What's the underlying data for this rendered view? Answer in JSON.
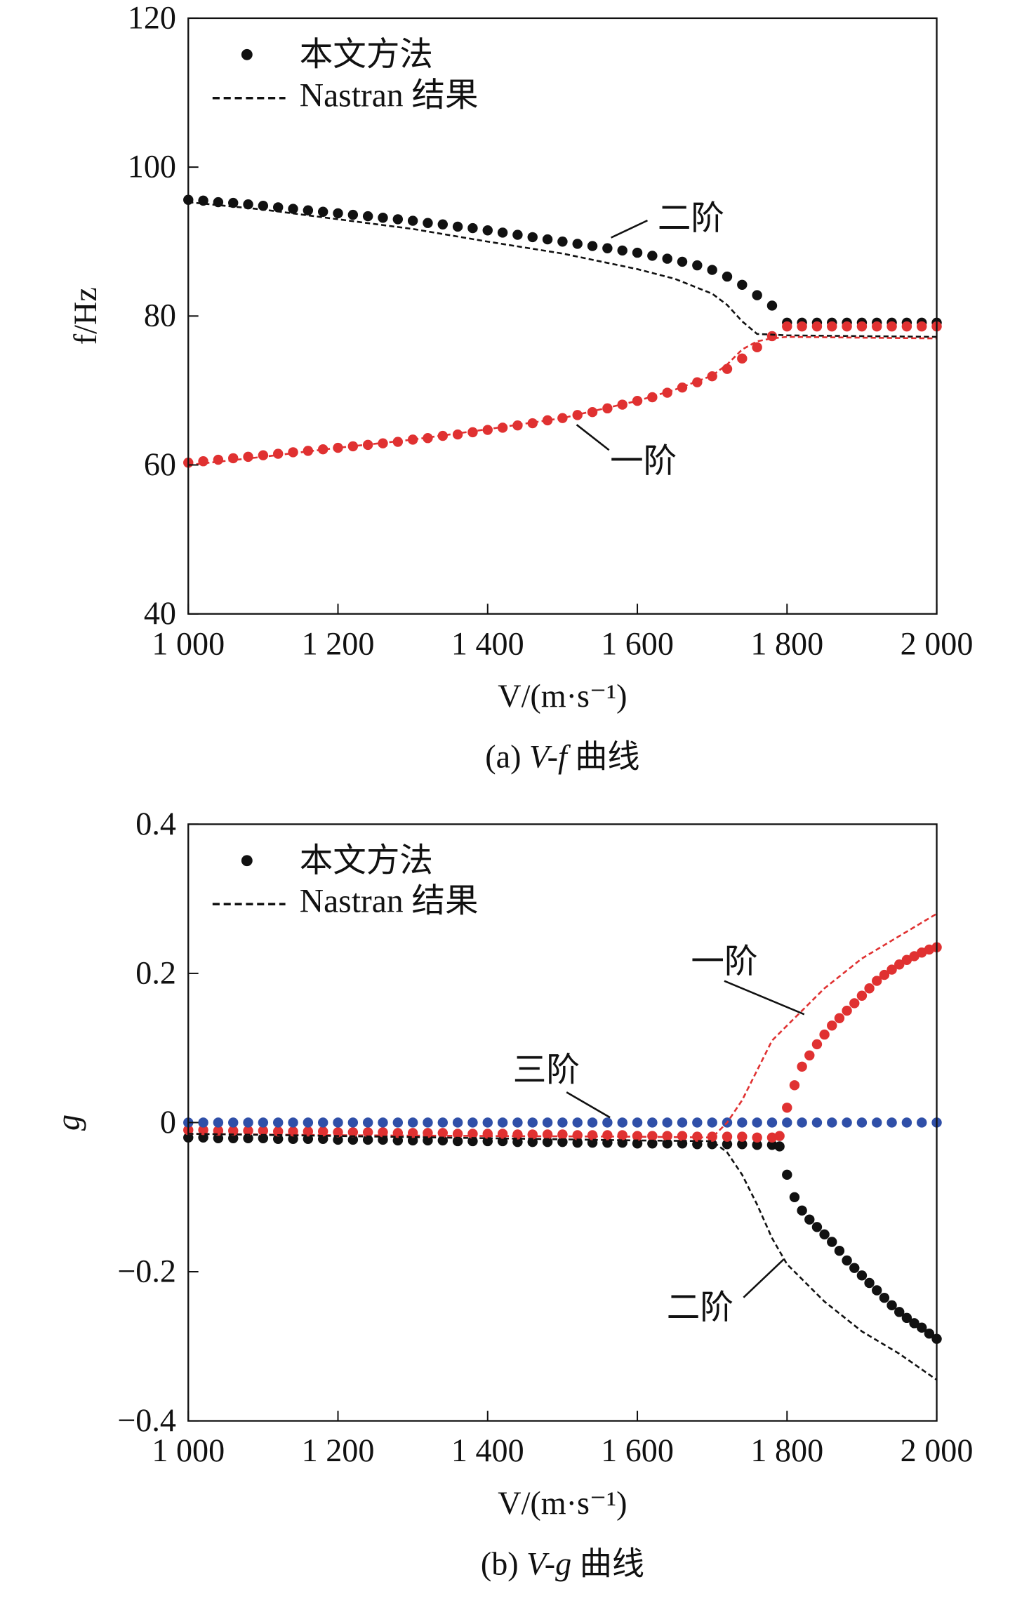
{
  "chart_data": [
    {
      "type": "scatter",
      "caption": "(a) V-f 曲线",
      "caption_parts": {
        "prefix": "(a) ",
        "italic": "V-f",
        "suffix": " 曲线"
      },
      "xlabel": "V/(m·s⁻¹)",
      "ylabel": "f/Hz",
      "xlim": [
        1000,
        2000
      ],
      "ylim": [
        40,
        120
      ],
      "xticks": [
        1000,
        1200,
        1400,
        1600,
        1800,
        2000
      ],
      "xtick_labels": [
        "1 000",
        "1 200",
        "1 400",
        "1 600",
        "1 800",
        "2 000"
      ],
      "yticks": [
        40,
        60,
        80,
        100,
        120
      ],
      "ytick_labels": [
        "40",
        "60",
        "80",
        "100",
        "120"
      ],
      "grid": false,
      "legend": {
        "position": "top-left",
        "entries": [
          {
            "label": "本文方法",
            "marker": "dot"
          },
          {
            "label": "Nastran 结果",
            "marker": "dashed-line"
          }
        ]
      },
      "annotations": [
        {
          "text": "二阶"
        },
        {
          "text": "一阶"
        }
      ],
      "series": [
        {
          "kind": "dots",
          "color": "#111111",
          "x": [
            1000,
            1020,
            1040,
            1060,
            1080,
            1100,
            1120,
            1140,
            1160,
            1180,
            1200,
            1220,
            1240,
            1260,
            1280,
            1300,
            1320,
            1340,
            1360,
            1380,
            1400,
            1420,
            1440,
            1460,
            1480,
            1500,
            1520,
            1540,
            1560,
            1580,
            1600,
            1620,
            1640,
            1660,
            1680,
            1700,
            1720,
            1740,
            1760,
            1780,
            1800,
            1820,
            1840,
            1860,
            1880,
            1900,
            1920,
            1940,
            1960,
            1980,
            2000
          ],
          "y": [
            95.6,
            95.5,
            95.3,
            95.2,
            95.0,
            94.8,
            94.6,
            94.4,
            94.2,
            94.0,
            93.8,
            93.6,
            93.4,
            93.2,
            93.0,
            92.8,
            92.5,
            92.3,
            92.0,
            91.8,
            91.5,
            91.2,
            90.9,
            90.6,
            90.3,
            90.0,
            89.7,
            89.4,
            89.1,
            88.8,
            88.5,
            88.1,
            87.7,
            87.3,
            86.8,
            86.2,
            85.3,
            84.2,
            82.8,
            81.4,
            79.1,
            79.1,
            79.1,
            79.1,
            79.1,
            79.1,
            79.1,
            79.1,
            79.1,
            79.1,
            79.1
          ]
        },
        {
          "kind": "dots",
          "color": "#e03131",
          "x": [
            1000,
            1020,
            1040,
            1060,
            1080,
            1100,
            1120,
            1140,
            1160,
            1180,
            1200,
            1220,
            1240,
            1260,
            1280,
            1300,
            1320,
            1340,
            1360,
            1380,
            1400,
            1420,
            1440,
            1460,
            1480,
            1500,
            1520,
            1540,
            1560,
            1580,
            1600,
            1620,
            1640,
            1660,
            1680,
            1700,
            1720,
            1740,
            1760,
            1780,
            1800,
            1820,
            1840,
            1860,
            1880,
            1900,
            1920,
            1940,
            1960,
            1980,
            2000
          ],
          "y": [
            60.3,
            60.5,
            60.7,
            60.9,
            61.1,
            61.3,
            61.5,
            61.7,
            61.9,
            62.1,
            62.3,
            62.5,
            62.7,
            62.9,
            63.1,
            63.4,
            63.6,
            63.9,
            64.1,
            64.4,
            64.7,
            65.0,
            65.3,
            65.6,
            66.0,
            66.3,
            66.7,
            67.1,
            67.6,
            68.1,
            68.6,
            69.1,
            69.7,
            70.4,
            71.1,
            71.9,
            72.9,
            74.3,
            75.8,
            77.3,
            78.6,
            78.6,
            78.6,
            78.6,
            78.6,
            78.6,
            78.6,
            78.6,
            78.6,
            78.6,
            78.6
          ]
        },
        {
          "kind": "dashed",
          "color": "#111111",
          "x": [
            1000,
            1100,
            1200,
            1300,
            1400,
            1500,
            1600,
            1650,
            1700,
            1720,
            1740,
            1760,
            1800,
            1900,
            2000
          ],
          "y": [
            95.3,
            94.3,
            93.0,
            91.7,
            90.0,
            88.4,
            86.3,
            85.0,
            83.0,
            81.5,
            79.3,
            77.6,
            77.4,
            77.3,
            77.2
          ]
        },
        {
          "kind": "dashed",
          "color": "#e03131",
          "x": [
            1000,
            1100,
            1200,
            1300,
            1400,
            1500,
            1600,
            1650,
            1700,
            1720,
            1740,
            1760,
            1780,
            1800,
            1900,
            2000
          ],
          "y": [
            60.0,
            61.1,
            62.3,
            63.4,
            64.8,
            66.3,
            68.6,
            70.1,
            72.0,
            73.5,
            75.5,
            76.6,
            77.0,
            77.2,
            77.1,
            77.0
          ]
        }
      ]
    },
    {
      "type": "scatter",
      "caption": "(b) V-g 曲线",
      "caption_parts": {
        "prefix": "(b) ",
        "italic": "V-g",
        "suffix": " 曲线"
      },
      "xlabel": "V/(m·s⁻¹)",
      "ylabel": "g",
      "xlim": [
        1000,
        2000
      ],
      "ylim": [
        -0.4,
        0.4
      ],
      "xticks": [
        1000,
        1200,
        1400,
        1600,
        1800,
        2000
      ],
      "xtick_labels": [
        "1 000",
        "1 200",
        "1 400",
        "1 600",
        "1 800",
        "2 000"
      ],
      "yticks": [
        -0.4,
        -0.2,
        0,
        0.2,
        0.4
      ],
      "ytick_labels": [
        "−0.4",
        "−0.2",
        "0",
        "0.2",
        "0.4"
      ],
      "grid": false,
      "legend": {
        "position": "top-left",
        "entries": [
          {
            "label": "本文方法",
            "marker": "dot"
          },
          {
            "label": "Nastran 结果",
            "marker": "dashed-line"
          }
        ]
      },
      "annotations": [
        {
          "text": "一阶"
        },
        {
          "text": "三阶"
        },
        {
          "text": "二阶"
        }
      ],
      "series": [
        {
          "kind": "dots",
          "color": "#111111",
          "x": [
            1000,
            1020,
            1040,
            1060,
            1080,
            1100,
            1120,
            1140,
            1160,
            1180,
            1200,
            1220,
            1240,
            1260,
            1280,
            1300,
            1320,
            1340,
            1360,
            1380,
            1400,
            1420,
            1440,
            1460,
            1480,
            1500,
            1520,
            1540,
            1560,
            1580,
            1600,
            1620,
            1640,
            1660,
            1680,
            1700,
            1720,
            1740,
            1760,
            1780,
            1790,
            1800,
            1810,
            1820,
            1830,
            1840,
            1850,
            1860,
            1870,
            1880,
            1890,
            1900,
            1910,
            1920,
            1930,
            1940,
            1950,
            1960,
            1970,
            1980,
            1990,
            2000
          ],
          "y": [
            -0.02,
            -0.02,
            -0.021,
            -0.021,
            -0.021,
            -0.021,
            -0.022,
            -0.022,
            -0.022,
            -0.022,
            -0.023,
            -0.023,
            -0.023,
            -0.023,
            -0.024,
            -0.024,
            -0.024,
            -0.024,
            -0.025,
            -0.025,
            -0.025,
            -0.025,
            -0.026,
            -0.026,
            -0.026,
            -0.026,
            -0.027,
            -0.027,
            -0.027,
            -0.027,
            -0.028,
            -0.028,
            -0.028,
            -0.028,
            -0.029,
            -0.029,
            -0.029,
            -0.029,
            -0.03,
            -0.03,
            -0.032,
            -0.07,
            -0.1,
            -0.118,
            -0.13,
            -0.14,
            -0.15,
            -0.16,
            -0.172,
            -0.185,
            -0.195,
            -0.205,
            -0.215,
            -0.225,
            -0.235,
            -0.245,
            -0.254,
            -0.262,
            -0.269,
            -0.275,
            -0.283,
            -0.29
          ]
        },
        {
          "kind": "dots",
          "color": "#e03131",
          "x": [
            1000,
            1020,
            1040,
            1060,
            1080,
            1100,
            1120,
            1140,
            1160,
            1180,
            1200,
            1220,
            1240,
            1260,
            1280,
            1300,
            1320,
            1340,
            1360,
            1380,
            1400,
            1420,
            1440,
            1460,
            1480,
            1500,
            1520,
            1540,
            1560,
            1580,
            1600,
            1620,
            1640,
            1660,
            1680,
            1700,
            1720,
            1740,
            1760,
            1780,
            1790,
            1800,
            1810,
            1820,
            1830,
            1840,
            1850,
            1860,
            1870,
            1880,
            1890,
            1900,
            1910,
            1920,
            1930,
            1940,
            1950,
            1960,
            1970,
            1980,
            1990,
            2000
          ],
          "y": [
            -0.01,
            -0.01,
            -0.011,
            -0.011,
            -0.011,
            -0.011,
            -0.012,
            -0.012,
            -0.012,
            -0.012,
            -0.013,
            -0.013,
            -0.013,
            -0.013,
            -0.014,
            -0.014,
            -0.014,
            -0.014,
            -0.015,
            -0.015,
            -0.015,
            -0.015,
            -0.016,
            -0.016,
            -0.016,
            -0.016,
            -0.017,
            -0.017,
            -0.017,
            -0.017,
            -0.018,
            -0.018,
            -0.018,
            -0.018,
            -0.019,
            -0.019,
            -0.019,
            -0.019,
            -0.02,
            -0.02,
            -0.018,
            0.02,
            0.05,
            0.075,
            0.09,
            0.105,
            0.118,
            0.13,
            0.14,
            0.15,
            0.16,
            0.17,
            0.18,
            0.19,
            0.198,
            0.205,
            0.212,
            0.218,
            0.223,
            0.228,
            0.232,
            0.235
          ]
        },
        {
          "kind": "dots",
          "color": "#2f4fa8",
          "x": [
            1000,
            1020,
            1040,
            1060,
            1080,
            1100,
            1120,
            1140,
            1160,
            1180,
            1200,
            1220,
            1240,
            1260,
            1280,
            1300,
            1320,
            1340,
            1360,
            1380,
            1400,
            1420,
            1440,
            1460,
            1480,
            1500,
            1520,
            1540,
            1560,
            1580,
            1600,
            1620,
            1640,
            1660,
            1680,
            1700,
            1720,
            1740,
            1760,
            1780,
            1800,
            1820,
            1840,
            1860,
            1880,
            1900,
            1920,
            1940,
            1960,
            1980,
            2000
          ],
          "y": [
            0,
            0,
            0,
            0,
            0,
            0,
            0,
            0,
            0,
            0,
            0,
            0,
            0,
            0,
            0,
            0,
            0,
            0,
            0,
            0,
            0,
            0,
            0,
            0,
            0,
            0,
            0,
            0,
            0,
            0,
            0,
            0,
            0,
            0,
            0,
            0,
            0,
            0,
            0,
            0,
            0,
            0,
            0,
            0,
            0,
            0,
            0,
            0,
            0,
            0,
            0
          ]
        },
        {
          "kind": "dashed",
          "color": "#e03131",
          "x": [
            1000,
            1200,
            1400,
            1600,
            1700,
            1720,
            1740,
            1760,
            1780,
            1800,
            1820,
            1850,
            1900,
            1950,
            2000
          ],
          "y": [
            -0.015,
            -0.017,
            -0.018,
            -0.019,
            -0.02,
            0.0,
            0.03,
            0.07,
            0.11,
            0.13,
            0.15,
            0.18,
            0.22,
            0.25,
            0.28
          ]
        },
        {
          "kind": "dashed",
          "color": "#111111",
          "x": [
            1000,
            1200,
            1400,
            1600,
            1700,
            1720,
            1740,
            1760,
            1780,
            1800,
            1850,
            1900,
            1950,
            2000
          ],
          "y": [
            -0.015,
            -0.018,
            -0.021,
            -0.024,
            -0.025,
            -0.04,
            -0.07,
            -0.11,
            -0.155,
            -0.19,
            -0.24,
            -0.28,
            -0.31,
            -0.345
          ]
        }
      ]
    }
  ]
}
